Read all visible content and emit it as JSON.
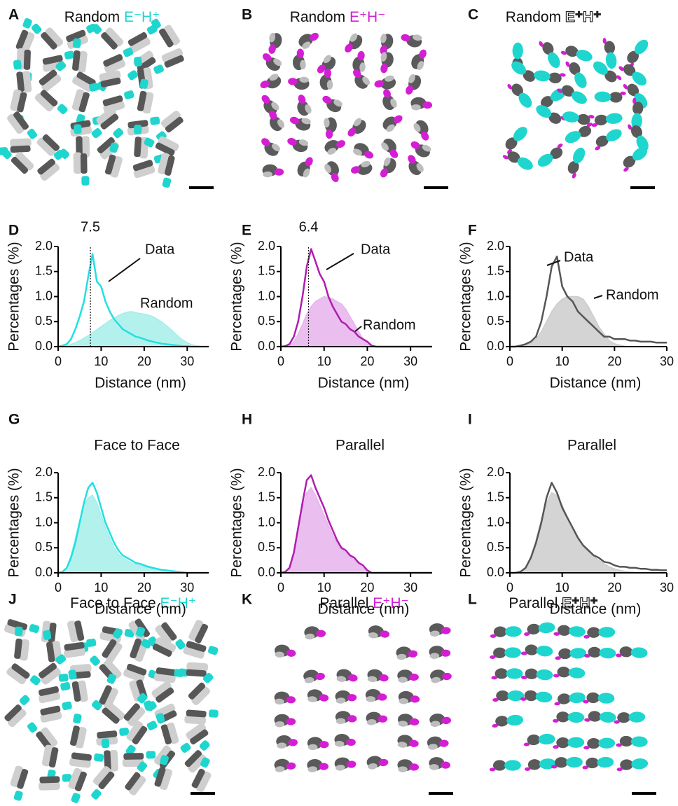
{
  "figure": {
    "panels": [
      {
        "letter": "A",
        "title": "Random",
        "label": "E⁻H⁺",
        "label_color": "#1fd6cf"
      },
      {
        "letter": "B",
        "title": "Random",
        "label": "E⁺H⁻",
        "label_color": "#d41ed4"
      },
      {
        "letter": "C",
        "title": "Random",
        "label": "E⁺H⁺",
        "label_color": "#ffffff",
        "label_outline": true
      },
      {
        "letter": "J",
        "title": "Face to Face",
        "label": "E⁻H⁺",
        "label_color": "#1fd6cf"
      },
      {
        "letter": "K",
        "title": "Parallel",
        "label": "E⁺H⁻",
        "label_color": "#d41ed4"
      },
      {
        "letter": "L",
        "title": "Parallel",
        "label": "E⁺H⁺",
        "label_color": "#ffffff",
        "label_outline": true
      }
    ]
  },
  "chart_data": [
    {
      "type": "line",
      "letter": "D",
      "peak": 7.5,
      "xlabel": "Distance (nm)",
      "ylabel": "Percentages (%)",
      "xlim": [
        0,
        35
      ],
      "xticks": [
        0,
        10,
        20,
        30
      ],
      "ylim": [
        0,
        2
      ],
      "yticks": [
        {
          "value": 0,
          "label": "0.0"
        },
        0.5,
        {
          "value": 1,
          "label": "1.0"
        },
        1.5,
        {
          "value": 2,
          "label": "2.0"
        }
      ],
      "x": [
        0,
        1,
        2,
        3,
        4,
        5,
        6,
        7,
        8,
        9,
        10,
        11,
        12,
        13,
        14,
        15,
        16,
        17,
        18,
        19,
        20,
        21,
        22,
        23,
        24,
        25,
        26,
        27,
        28,
        29,
        30,
        31,
        32,
        33,
        34,
        35
      ],
      "series": [
        {
          "name": "Random",
          "style": "area",
          "color": "#a6eeea",
          "values": [
            0,
            0,
            0.02,
            0.05,
            0.08,
            0.12,
            0.17,
            0.22,
            0.28,
            0.34,
            0.4,
            0.46,
            0.52,
            0.57,
            0.62,
            0.66,
            0.69,
            0.7,
            0.68,
            0.66,
            0.65,
            0.63,
            0.6,
            0.55,
            0.5,
            0.43,
            0.36,
            0.28,
            0.2,
            0.13,
            0.08,
            0.04,
            0.02,
            0.01,
            0,
            0
          ]
        },
        {
          "name": "Data",
          "style": "line",
          "color": "#22e0e0",
          "values": [
            0,
            0.02,
            0.05,
            0.15,
            0.35,
            0.6,
            0.9,
            1.4,
            1.85,
            1.3,
            1.2,
            0.9,
            0.7,
            0.55,
            0.45,
            0.35,
            0.3,
            0.25,
            0.2,
            0.18,
            0.15,
            0.12,
            0.1,
            0.08,
            0.06,
            0.05,
            0.04,
            0.03,
            0.02,
            0.01,
            0.01,
            0,
            0,
            0,
            0,
            0
          ]
        }
      ]
    },
    {
      "type": "line",
      "letter": "E",
      "peak": 6.4,
      "xlabel": "Distance (nm)",
      "ylabel": "Percentages (%)",
      "xlim": [
        0,
        35
      ],
      "xticks": [
        0,
        10,
        20,
        30
      ],
      "ylim": [
        0,
        2
      ],
      "yticks": [
        {
          "value": 0,
          "label": "0.0"
        },
        0.5,
        {
          "value": 1,
          "label": "1.0"
        },
        1.5,
        {
          "value": 2,
          "label": "2.0"
        }
      ],
      "x": [
        0,
        1,
        2,
        3,
        4,
        5,
        6,
        7,
        8,
        9,
        10,
        11,
        12,
        13,
        14,
        15,
        16,
        17,
        18,
        19,
        20,
        21,
        22,
        23,
        24,
        25,
        26,
        27,
        28,
        29,
        30,
        31,
        32,
        33,
        34,
        35
      ],
      "series": [
        {
          "name": "Random",
          "style": "area",
          "color": "#e6b4ec",
          "values": [
            0,
            0,
            0.02,
            0.1,
            0.25,
            0.45,
            0.65,
            0.8,
            0.9,
            0.95,
            1.0,
            0.98,
            0.95,
            0.9,
            0.85,
            0.75,
            0.6,
            0.45,
            0.3,
            0.15,
            0.05,
            0,
            0,
            0,
            0,
            0,
            0,
            0,
            0,
            0,
            0,
            0,
            0,
            0,
            0,
            0
          ]
        },
        {
          "name": "Data",
          "style": "line",
          "color": "#b01cb0",
          "values": [
            0,
            0.01,
            0.05,
            0.2,
            0.5,
            1.0,
            1.6,
            1.95,
            1.7,
            1.45,
            1.3,
            1.0,
            0.8,
            0.65,
            0.5,
            0.45,
            0.35,
            0.3,
            0.2,
            0.15,
            0.1,
            0.02,
            0,
            0,
            0,
            0,
            0,
            0,
            0,
            0,
            0,
            0,
            0,
            0,
            0,
            0
          ]
        }
      ]
    },
    {
      "type": "line",
      "letter": "F",
      "xlabel": "Distance (nm)",
      "ylabel": "Percentages (%)",
      "xlim": [
        0,
        30
      ],
      "xticks": [
        0,
        10,
        20,
        30
      ],
      "ylim": [
        0,
        2
      ],
      "yticks": [
        {
          "value": 0,
          "label": "0.0"
        },
        0.5,
        {
          "value": 1,
          "label": "1.0"
        },
        1.5,
        {
          "value": 2,
          "label": "2.0"
        }
      ],
      "x": [
        0,
        1,
        2,
        3,
        4,
        5,
        6,
        7,
        8,
        9,
        10,
        11,
        12,
        13,
        14,
        15,
        16,
        17,
        18,
        19,
        20,
        21,
        22,
        23,
        24,
        25,
        26,
        27,
        28,
        29,
        30
      ],
      "series": [
        {
          "name": "Random",
          "style": "area",
          "color": "#cccccc",
          "values": [
            0,
            0,
            0.01,
            0.03,
            0.07,
            0.15,
            0.3,
            0.5,
            0.7,
            0.85,
            0.95,
            1.0,
            1.0,
            1.0,
            0.95,
            0.8,
            0.6,
            0.4,
            0.25,
            0.12,
            0.06,
            0.03,
            0.01,
            0,
            0,
            0,
            0,
            0,
            0,
            0,
            0
          ]
        },
        {
          "name": "Data",
          "style": "line",
          "color": "#555555",
          "values": [
            0,
            0,
            0.02,
            0.05,
            0.1,
            0.2,
            0.5,
            1.0,
            1.6,
            1.8,
            1.2,
            1.0,
            0.9,
            0.7,
            0.6,
            0.5,
            0.4,
            0.3,
            0.2,
            0.2,
            0.15,
            0.15,
            0.15,
            0.12,
            0.12,
            0.1,
            0.1,
            0.1,
            0.08,
            0.08,
            0.08
          ]
        }
      ]
    },
    {
      "type": "line",
      "letter": "G",
      "title": "Face to Face",
      "xlabel": "Distance (nm)",
      "ylabel": "Percentages (%)",
      "xlim": [
        0,
        35
      ],
      "xticks": [
        0,
        10,
        20,
        30
      ],
      "ylim": [
        0,
        2
      ],
      "yticks": [
        {
          "value": 0,
          "label": "0.0"
        },
        0.5,
        {
          "value": 1,
          "label": "1.0"
        },
        1.5,
        {
          "value": 2,
          "label": "2.0"
        }
      ],
      "x": [
        0,
        1,
        2,
        3,
        4,
        5,
        6,
        7,
        8,
        9,
        10,
        11,
        12,
        13,
        14,
        15,
        16,
        17,
        18,
        19,
        20,
        21,
        22,
        23,
        24,
        25,
        26,
        27,
        28,
        29,
        30,
        31,
        32,
        33,
        34,
        35
      ],
      "series": [
        {
          "style": "area",
          "color": "#a6eeea",
          "values": [
            0,
            0.02,
            0.1,
            0.35,
            0.7,
            1.05,
            1.35,
            1.5,
            1.55,
            1.4,
            1.15,
            0.9,
            0.7,
            0.5,
            0.38,
            0.3,
            0.25,
            0.2,
            0.17,
            0.15,
            0.12,
            0.1,
            0.08,
            0.06,
            0.05,
            0.04,
            0.03,
            0.02,
            0.01,
            0.01,
            0,
            0,
            0,
            0,
            0,
            0
          ]
        },
        {
          "style": "line",
          "color": "#22e0e0",
          "values": [
            0,
            0.02,
            0.1,
            0.3,
            0.6,
            1.0,
            1.4,
            1.7,
            1.8,
            1.6,
            1.3,
            1.0,
            0.8,
            0.6,
            0.45,
            0.35,
            0.3,
            0.25,
            0.2,
            0.18,
            0.15,
            0.12,
            0.1,
            0.08,
            0.06,
            0.05,
            0.04,
            0.03,
            0.02,
            0.01,
            0,
            0,
            0,
            0,
            0,
            0
          ]
        }
      ]
    },
    {
      "type": "line",
      "letter": "H",
      "title": "Parallel",
      "xlabel": "Distance (nm)",
      "ylabel": "Percentages (%)",
      "xlim": [
        0,
        35
      ],
      "xticks": [
        0,
        10,
        20,
        30
      ],
      "ylim": [
        0,
        2
      ],
      "yticks": [
        {
          "value": 0,
          "label": "0.0"
        },
        0.5,
        {
          "value": 1,
          "label": "1.0"
        },
        1.5,
        {
          "value": 2,
          "label": "2.0"
        }
      ],
      "x": [
        0,
        1,
        2,
        3,
        4,
        5,
        6,
        7,
        8,
        9,
        10,
        11,
        12,
        13,
        14,
        15,
        16,
        17,
        18,
        19,
        20,
        21,
        22,
        23,
        24,
        25,
        26,
        27,
        28,
        29,
        30,
        31,
        32,
        33,
        34,
        35
      ],
      "series": [
        {
          "style": "area",
          "color": "#e6b4ec",
          "values": [
            0,
            0.02,
            0.1,
            0.4,
            0.85,
            1.3,
            1.6,
            1.7,
            1.55,
            1.35,
            1.15,
            0.95,
            0.75,
            0.6,
            0.48,
            0.4,
            0.32,
            0.25,
            0.18,
            0.1,
            0.03,
            0,
            0,
            0,
            0,
            0,
            0,
            0,
            0,
            0,
            0,
            0,
            0,
            0,
            0,
            0
          ]
        },
        {
          "style": "line",
          "color": "#b01cb0",
          "values": [
            0,
            0.02,
            0.1,
            0.4,
            0.9,
            1.4,
            1.85,
            1.95,
            1.7,
            1.5,
            1.3,
            1.05,
            0.85,
            0.65,
            0.5,
            0.45,
            0.35,
            0.3,
            0.2,
            0.15,
            0.05,
            0,
            0,
            0,
            0,
            0,
            0,
            0,
            0,
            0,
            0,
            0,
            0,
            0,
            0,
            0
          ]
        }
      ]
    },
    {
      "type": "line",
      "letter": "I",
      "title": "Parallel",
      "xlabel": "Distance (nm)",
      "ylabel": "Percentages (%)",
      "xlim": [
        0,
        30
      ],
      "xticks": [
        0,
        10,
        20,
        30
      ],
      "ylim": [
        0,
        2
      ],
      "yticks": [
        {
          "value": 0,
          "label": "0.0"
        },
        0.5,
        {
          "value": 1,
          "label": "1.0"
        },
        1.5,
        {
          "value": 2,
          "label": "2.0"
        }
      ],
      "x": [
        0,
        1,
        2,
        3,
        4,
        5,
        6,
        7,
        8,
        9,
        10,
        11,
        12,
        13,
        14,
        15,
        16,
        17,
        18,
        19,
        20,
        21,
        22,
        23,
        24,
        25,
        26,
        27,
        28,
        29,
        30
      ],
      "series": [
        {
          "style": "area",
          "color": "#cccccc",
          "values": [
            0,
            0,
            0.02,
            0.1,
            0.3,
            0.65,
            1.05,
            1.4,
            1.6,
            1.55,
            1.35,
            1.1,
            0.9,
            0.7,
            0.55,
            0.42,
            0.32,
            0.25,
            0.18,
            0.12,
            0.08,
            0.05,
            0.03,
            0.02,
            0.01,
            0,
            0,
            0,
            0,
            0,
            0
          ]
        },
        {
          "style": "line",
          "color": "#555555",
          "values": [
            0,
            0,
            0.02,
            0.1,
            0.3,
            0.6,
            1.0,
            1.5,
            1.8,
            1.6,
            1.3,
            1.1,
            0.9,
            0.7,
            0.55,
            0.45,
            0.35,
            0.3,
            0.22,
            0.2,
            0.15,
            0.12,
            0.12,
            0.1,
            0.1,
            0.08,
            0.08,
            0.06,
            0.06,
            0.05,
            0.05
          ]
        }
      ]
    }
  ]
}
